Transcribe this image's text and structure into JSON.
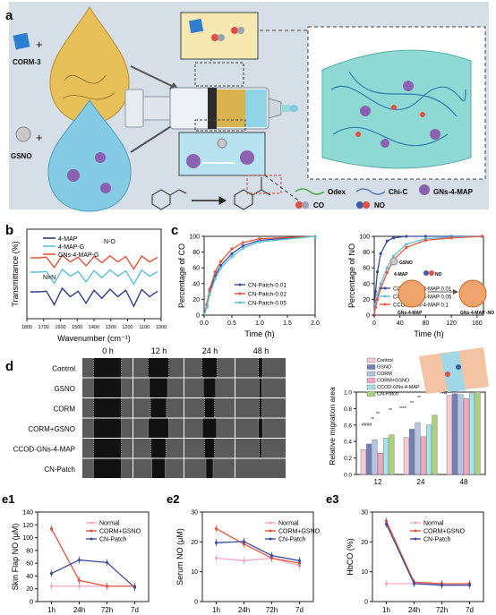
{
  "panel_labels": {
    "a": "a",
    "b": "b",
    "c": "c",
    "d": "d",
    "e1": "e1",
    "e2": "e2",
    "e3": "e3"
  },
  "panel_a": {
    "corm_label": "CORM-3",
    "gsno_label": "GSNO",
    "legend": [
      {
        "label": "Odex"
      },
      {
        "label": "Chi-C"
      },
      {
        "label": "GNs-4-MAP"
      },
      {
        "label": "CO"
      },
      {
        "label": "NO"
      }
    ],
    "colors": {
      "bg": "#d6dfe8",
      "gold": "#e0b84a",
      "blue": "#7fc6e4",
      "gel": "#8fd9d4"
    }
  },
  "chart_data": [
    {
      "type": "line",
      "panel": "b",
      "xlabel": "Wavenumber (cm⁻¹)",
      "ylabel": "Transmittance (%)",
      "x_ticks": [
        "1800",
        "1700",
        "1600",
        "1500",
        "1400",
        "1300",
        "1200",
        "1100",
        "1000"
      ],
      "xlim": [
        1800,
        1000
      ],
      "series": [
        {
          "name": "4-MAP",
          "color": "#2d3a8c"
        },
        {
          "name": "4-MAP-G",
          "color": "#5bc1d6"
        },
        {
          "name": "GNs-4-MAP-G",
          "color": "#e4543c"
        }
      ],
      "annotations": [
        "N=N",
        "N-O"
      ]
    },
    {
      "type": "line",
      "panel": "c-left",
      "xlabel": "Time (h)",
      "ylabel": "Percentage of CO",
      "x_ticks": [
        "0.0",
        "0.5",
        "1.0",
        "1.5",
        "2.0"
      ],
      "y_ticks": [
        "0",
        "20",
        "40",
        "60",
        "80",
        "100"
      ],
      "xlim": [
        0,
        2
      ],
      "ylim": [
        0,
        100
      ],
      "x": [
        0,
        0.05,
        0.1,
        0.2,
        0.3,
        0.5,
        0.7,
        1.0,
        2.0
      ],
      "series": [
        {
          "name": "CN-Patch-0.01",
          "color": "#3a4da0",
          "values": [
            0,
            12,
            30,
            50,
            63,
            78,
            88,
            95,
            100
          ]
        },
        {
          "name": "CN-Patch-0.02",
          "color": "#e4543c",
          "values": [
            0,
            14,
            33,
            55,
            68,
            84,
            92,
            97,
            100
          ]
        },
        {
          "name": "CN-Patch-0.05",
          "color": "#5bc1d6",
          "values": [
            0,
            10,
            26,
            46,
            60,
            74,
            85,
            93,
            100
          ]
        }
      ]
    },
    {
      "type": "line",
      "panel": "c-right",
      "xlabel": "Time (h)",
      "ylabel": "Percentage of NO",
      "x_ticks": [
        "0",
        "40",
        "80",
        "120",
        "160"
      ],
      "y_ticks": [
        "0",
        "20",
        "40",
        "60",
        "80",
        "100"
      ],
      "xlim": [
        0,
        170
      ],
      "ylim": [
        0,
        100
      ],
      "x": [
        0,
        2,
        5,
        10,
        20,
        30,
        50,
        80,
        120,
        168
      ],
      "series": [
        {
          "name": "CCOD-GNs-4-MAP 0.01",
          "color": "#3a4da0",
          "values": [
            0,
            30,
            55,
            78,
            94,
            98,
            100,
            100,
            100,
            100
          ]
        },
        {
          "name": "CCOD-GNs-4-MAP 0.05",
          "color": "#5bc1d6",
          "values": [
            0,
            14,
            26,
            40,
            60,
            75,
            90,
            97,
            99,
            100
          ]
        },
        {
          "name": "CCOD-GNs-4-MAP 0.1",
          "color": "#e4543c",
          "values": [
            0,
            10,
            20,
            34,
            54,
            70,
            86,
            95,
            98,
            100
          ]
        }
      ],
      "inset_labels": [
        "GSNO",
        "4-MAP",
        "NO",
        "GNs-4-MAP",
        "GNs-4-MAP -NO"
      ]
    },
    {
      "type": "bar",
      "panel": "d-right",
      "ylabel": "Relative migration area",
      "categories": [
        "12",
        "24",
        "48"
      ],
      "ylim": [
        0,
        1.0
      ],
      "y_ticks": [
        "0.0",
        "0.2",
        "0.4",
        "0.6",
        "0.8",
        "1.0"
      ],
      "x_ticks": [
        "12",
        "24",
        "48"
      ],
      "series": [
        {
          "name": "Control",
          "color": "#f6c9d9",
          "values": [
            0.3,
            0.45,
            0.96
          ]
        },
        {
          "name": "GSNO",
          "color": "#6e7fb9",
          "values": [
            0.37,
            0.55,
            0.98
          ]
        },
        {
          "name": "CORM",
          "color": "#b6c3e3",
          "values": [
            0.42,
            0.63,
            0.97
          ]
        },
        {
          "name": "CORM+GSNO",
          "color": "#f4a6c2",
          "values": [
            0.26,
            0.46,
            0.92
          ]
        },
        {
          "name": "CCOD-GNs-4-MAP",
          "color": "#a7e3ea",
          "values": [
            0.44,
            0.6,
            0.98
          ]
        },
        {
          "name": "CN-Patch",
          "color": "#a8d27a",
          "values": [
            0.48,
            0.72,
            1.0
          ]
        }
      ],
      "sig_labels": [
        "####",
        "**",
        "**",
        "**",
        "****",
        "**",
        "**",
        "ns"
      ]
    },
    {
      "type": "line",
      "panel": "e1",
      "ylabel": "Skin Flap NO (μM)",
      "categories": [
        "1h",
        "24h",
        "72h",
        "7d"
      ],
      "ylim": [
        0,
        140
      ],
      "y_ticks": [
        "0",
        "20",
        "40",
        "60",
        "80",
        "100",
        "120",
        "140"
      ],
      "series": [
        {
          "name": "Normal",
          "color": "#f3a7c6",
          "values": [
            24,
            24,
            24,
            24
          ]
        },
        {
          "name": "CORM+GSNO",
          "color": "#e4543c",
          "values": [
            114,
            33,
            24,
            24
          ]
        },
        {
          "name": "CN-Patch",
          "color": "#3a4da0",
          "values": [
            44,
            65,
            61,
            22
          ]
        }
      ]
    },
    {
      "type": "line",
      "panel": "e2",
      "ylabel": "Serum NO (μM)",
      "categories": [
        "1h",
        "24h",
        "72h",
        "7d"
      ],
      "ylim": [
        0,
        35
      ],
      "y_ticks": [
        "0",
        "10",
        "20",
        "30"
      ],
      "series": [
        {
          "name": "Normal",
          "color": "#f3a7c6",
          "values": [
            17,
            16,
            17,
            14
          ]
        },
        {
          "name": "CORM+GSNO",
          "color": "#e4543c",
          "values": [
            28.5,
            22.5,
            17,
            15
          ]
        },
        {
          "name": "CN-Patch",
          "color": "#3a4da0",
          "values": [
            23,
            23.5,
            18,
            16
          ]
        }
      ]
    },
    {
      "type": "line",
      "panel": "e3",
      "ylabel": "HbCO (%)",
      "categories": [
        "1h",
        "24h",
        "72h",
        "7d"
      ],
      "ylim": [
        0,
        30
      ],
      "y_ticks": [
        "0",
        "10",
        "20",
        "30"
      ],
      "series": [
        {
          "name": "Normal",
          "color": "#f3a7c6",
          "values": [
            6,
            6,
            6,
            6
          ]
        },
        {
          "name": "CORM+GSNO",
          "color": "#e4543c",
          "values": [
            27,
            6.5,
            6,
            6
          ]
        },
        {
          "name": "CN-Patch",
          "color": "#3a4da0",
          "values": [
            26,
            6,
            5.5,
            5.5
          ]
        }
      ]
    }
  ],
  "panel_d": {
    "time_labels": [
      "0 h",
      "12 h",
      "24 h",
      "48 h"
    ],
    "row_labels": [
      "Control",
      "GSNO",
      "CORM",
      "CORM+GSNO",
      "CCOD-GNs-4-MAP",
      "CN-Patch"
    ],
    "gap_fraction": [
      [
        0.55,
        0.42,
        0.3,
        0.08
      ],
      [
        0.55,
        0.36,
        0.24,
        0.05
      ],
      [
        0.55,
        0.32,
        0.2,
        0.05
      ],
      [
        0.55,
        0.4,
        0.28,
        0.08
      ],
      [
        0.55,
        0.3,
        0.2,
        0.04
      ],
      [
        0.55,
        0.26,
        0.14,
        0.02
      ]
    ]
  }
}
